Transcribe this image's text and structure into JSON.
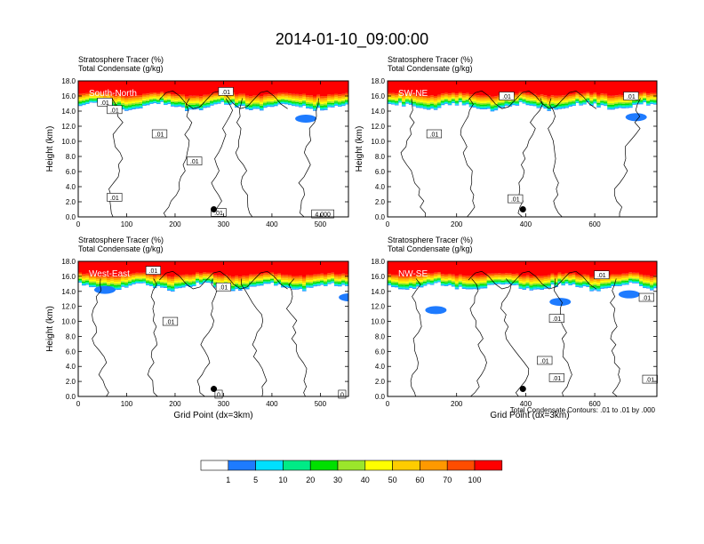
{
  "title": "2014-01-10_09:00:00",
  "footnote": "Total Condensate Contours: .01 to .01 by .000",
  "chart_data": [
    {
      "type": "heatmap",
      "name": "South-North",
      "header": [
        "Stratosphere Tracer   (%)",
        "Total Condensate   (g/kg)"
      ],
      "label": "South-North",
      "xlabel": "",
      "ylabel": "Height (km)",
      "xlim": [
        0,
        558
      ],
      "ylim": [
        0,
        18
      ],
      "xticks": [
        0,
        100,
        200,
        300,
        400,
        500
      ],
      "yticks": [
        "0.0",
        "2.0",
        "4.0",
        "6.0",
        "8.0",
        "10.0",
        "12.0",
        "14.0",
        "16.0",
        "18.0"
      ],
      "point_x": 280,
      "point_y": 1.0,
      "contour_labels": [
        {
          "x": 55,
          "y": 15.2,
          "t": ".01"
        },
        {
          "x": 75,
          "y": 14.2,
          "t": ".01"
        },
        {
          "x": 168,
          "y": 11.0,
          "t": ".01"
        },
        {
          "x": 240,
          "y": 7.4,
          "t": ".01"
        },
        {
          "x": 305,
          "y": 16.6,
          "t": ".01"
        },
        {
          "x": 75,
          "y": 2.6,
          "t": ".01"
        },
        {
          "x": 290,
          "y": 0.6,
          "t": ".01"
        },
        {
          "x": 505,
          "y": 0.4,
          "t": "4.000"
        }
      ]
    },
    {
      "type": "heatmap",
      "name": "SW-NE",
      "header": [
        "Stratosphere Tracer   (%)",
        "Total Condensate   (g/kg)"
      ],
      "label": "SW-NE",
      "xlabel": "",
      "ylabel": "Height (km)",
      "xlim": [
        0,
        780
      ],
      "ylim": [
        0,
        18
      ],
      "xticks": [
        0,
        200,
        400,
        600
      ],
      "yticks": [
        "0.0",
        "2.0",
        "4.0",
        "6.0",
        "8.0",
        "10.0",
        "12.0",
        "14.0",
        "16.0",
        "18.0"
      ],
      "point_x": 392,
      "point_y": 1.0,
      "contour_labels": [
        {
          "x": 345,
          "y": 16.0,
          "t": ".01"
        },
        {
          "x": 705,
          "y": 16.0,
          "t": ".01"
        },
        {
          "x": 135,
          "y": 11.0,
          "t": ".01"
        },
        {
          "x": 370,
          "y": 2.4,
          "t": ".01"
        }
      ]
    },
    {
      "type": "heatmap",
      "name": "West-East",
      "header": [
        "Stratosphere Tracer   (%)",
        "Total Condensate   (g/kg)"
      ],
      "label": "West-East",
      "xlabel": "Grid Point (dx=3km)",
      "ylabel": "Height (km)",
      "xlim": [
        0,
        558
      ],
      "ylim": [
        0,
        18
      ],
      "xticks": [
        0,
        100,
        200,
        300,
        400,
        500
      ],
      "yticks": [
        "0.0",
        "2.0",
        "4.0",
        "6.0",
        "8.0",
        "10.0",
        "12.0",
        "14.0",
        "16.0",
        "18.0"
      ],
      "point_x": 280,
      "point_y": 1.0,
      "contour_labels": [
        {
          "x": 155,
          "y": 16.8,
          "t": ".01"
        },
        {
          "x": 300,
          "y": 14.6,
          "t": ".01"
        },
        {
          "x": 190,
          "y": 10.0,
          "t": ".01"
        },
        {
          "x": 290,
          "y": 0.3,
          "t": "0"
        },
        {
          "x": 545,
          "y": 0.3,
          "t": "0"
        }
      ]
    },
    {
      "type": "heatmap",
      "name": "NW-SE",
      "header": [
        "Stratosphere Tracer   (%)",
        "Total Condensate   (g/kg)"
      ],
      "label": "NW-SE",
      "xlabel": "Grid Point (dx=3km)",
      "ylabel": "",
      "xlim": [
        0,
        780
      ],
      "ylim": [
        0,
        18
      ],
      "xticks": [
        0,
        200,
        400,
        600
      ],
      "yticks": [
        "0.0",
        "2.0",
        "4.0",
        "6.0",
        "8.0",
        "10.0",
        "12.0",
        "14.0",
        "16.0",
        "18.0"
      ],
      "point_x": 392,
      "point_y": 1.0,
      "contour_labels": [
        {
          "x": 620,
          "y": 16.2,
          "t": ".01"
        },
        {
          "x": 750,
          "y": 13.2,
          "t": ".01"
        },
        {
          "x": 490,
          "y": 10.4,
          "t": ".01"
        },
        {
          "x": 455,
          "y": 4.8,
          "t": ".01"
        },
        {
          "x": 490,
          "y": 2.5,
          "t": ".01"
        },
        {
          "x": 760,
          "y": 2.3,
          "t": ".01"
        }
      ]
    }
  ],
  "colorbar": {
    "labels": [
      "1",
      "5",
      "10",
      "20",
      "30",
      "40",
      "50",
      "60",
      "70",
      "100"
    ],
    "colors": [
      "#ffffff",
      "#1e7bff",
      "#00dfff",
      "#00eb86",
      "#00e000",
      "#9be62b",
      "#ffff00",
      "#ffcc00",
      "#ff9900",
      "#ff4d00",
      "#ff0000"
    ]
  }
}
